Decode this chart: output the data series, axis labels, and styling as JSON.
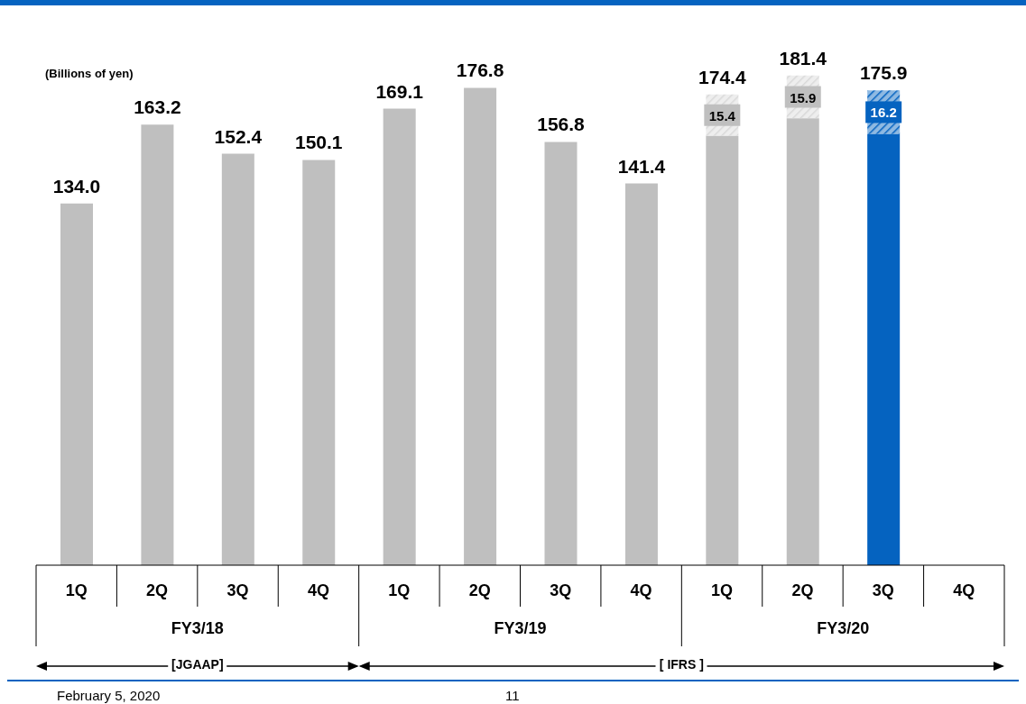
{
  "chart_data": {
    "type": "bar",
    "stacked": true,
    "ylabel": "(Billions of yen)",
    "categories": [
      "1Q",
      "2Q",
      "3Q",
      "4Q",
      "1Q",
      "2Q",
      "3Q",
      "4Q",
      "1Q",
      "2Q",
      "3Q",
      "4Q"
    ],
    "legend": false,
    "grid": false,
    "series": [
      {
        "colors": [
          "#bfbfbf",
          "#bfbfbf",
          "#bfbfbf",
          "#bfbfbf",
          "#bfbfbf",
          "#bfbfbf",
          "#bfbfbf",
          "#bfbfbf",
          "#bfbfbf",
          "#bfbfbf",
          "#0563c0",
          "#bfbfbf"
        ],
        "values": [
          134.0,
          163.2,
          152.4,
          150.1,
          169.1,
          176.8,
          156.8,
          141.4,
          159.0,
          165.5,
          159.7,
          null
        ],
        "value_labels": [
          "134.0",
          "163.2",
          "152.4",
          "150.1",
          "169.1",
          "176.8",
          "156.8",
          "141.4",
          null,
          null,
          null,
          null
        ]
      },
      {
        "colors": [
          "#d9d9d9",
          "#d9d9d9",
          "#d9d9d9",
          "#d9d9d9",
          "#d9d9d9",
          "#d9d9d9",
          "#d9d9d9",
          "#d9d9d9",
          "#d9d9d9",
          "#d9d9d9",
          "#0563c0",
          "#d9d9d9"
        ],
        "values": [
          null,
          null,
          null,
          null,
          null,
          null,
          null,
          null,
          15.4,
          15.9,
          16.2,
          null
        ],
        "value_labels": [
          null,
          null,
          null,
          null,
          null,
          null,
          null,
          null,
          "15.4",
          "15.9",
          "16.2",
          null
        ]
      }
    ],
    "totals": [
      null,
      null,
      null,
      null,
      null,
      null,
      null,
      null,
      "174.4",
      "181.4",
      "175.9",
      null
    ],
    "annotations": [
      "FY3/18",
      "FY3/19",
      "FY3/20",
      "[JGAAP]",
      "[ IFRS ]",
      "February 5, 2020",
      "11"
    ]
  }
}
